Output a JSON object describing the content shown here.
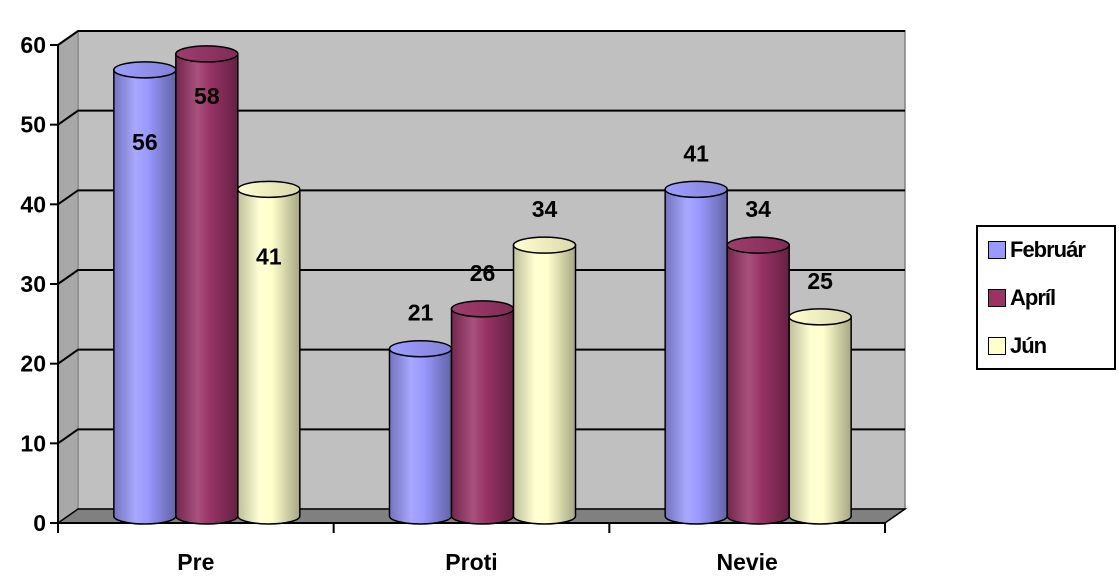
{
  "chart_data": {
    "type": "bar",
    "categories": [
      "Pre",
      "Proti",
      "Nevie"
    ],
    "series": [
      {
        "name": "Február",
        "values": [
          56,
          21,
          41
        ],
        "color": "#9999ff"
      },
      {
        "name": "Apríl",
        "values": [
          58,
          26,
          34
        ],
        "color": "#993366"
      },
      {
        "name": "Jún",
        "values": [
          41,
          34,
          25
        ],
        "color": "#ffffcc"
      }
    ],
    "ylim": [
      0,
      60
    ],
    "yticks": [
      "0",
      "10",
      "20",
      "30",
      "40",
      "50",
      "60"
    ],
    "data_labels": [
      [
        "56",
        "21",
        "41"
      ],
      [
        "58",
        "26",
        "34"
      ],
      [
        "41",
        "34",
        "25"
      ]
    ],
    "grid": true,
    "legend_position": "right",
    "style": "3d-cylinder",
    "wall_color": "#c0c0c0",
    "floor_color": "#808080"
  }
}
